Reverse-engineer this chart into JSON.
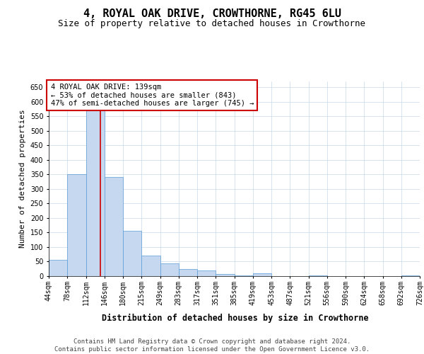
{
  "title": "4, ROYAL OAK DRIVE, CROWTHORNE, RG45 6LU",
  "subtitle": "Size of property relative to detached houses in Crowthorne",
  "xlabel": "Distribution of detached houses by size in Crowthorne",
  "ylabel": "Number of detached properties",
  "bar_labels": [
    "44sqm",
    "78sqm",
    "112sqm",
    "146sqm",
    "180sqm",
    "215sqm",
    "249sqm",
    "283sqm",
    "317sqm",
    "351sqm",
    "385sqm",
    "419sqm",
    "453sqm",
    "487sqm",
    "521sqm",
    "556sqm",
    "590sqm",
    "624sqm",
    "658sqm",
    "692sqm",
    "726sqm"
  ],
  "bar_heights": [
    55,
    350,
    625,
    340,
    155,
    70,
    43,
    25,
    20,
    7,
    2,
    10,
    0,
    0,
    2,
    0,
    0,
    0,
    0,
    2,
    0
  ],
  "bar_color": "#c5d8f0",
  "bar_edge_color": "#5b9bd5",
  "bar_edge_width": 0.5,
  "ylim": [
    0,
    670
  ],
  "yticks": [
    0,
    50,
    100,
    150,
    200,
    250,
    300,
    350,
    400,
    450,
    500,
    550,
    600,
    650
  ],
  "annotation_text": "4 ROYAL OAK DRIVE: 139sqm\n← 53% of detached houses are smaller (843)\n47% of semi-detached houses are larger (745) →",
  "annotation_box_color": "#ffffff",
  "annotation_box_edge_color": "#cc0000",
  "footer_text": "Contains HM Land Registry data © Crown copyright and database right 2024.\nContains public sector information licensed under the Open Government Licence v3.0.",
  "background_color": "#ffffff",
  "grid_color": "#c8d8ea",
  "title_fontsize": 11,
  "subtitle_fontsize": 9,
  "xlabel_fontsize": 8.5,
  "ylabel_fontsize": 8,
  "tick_fontsize": 7,
  "annotation_fontsize": 7.5,
  "footer_fontsize": 6.5
}
